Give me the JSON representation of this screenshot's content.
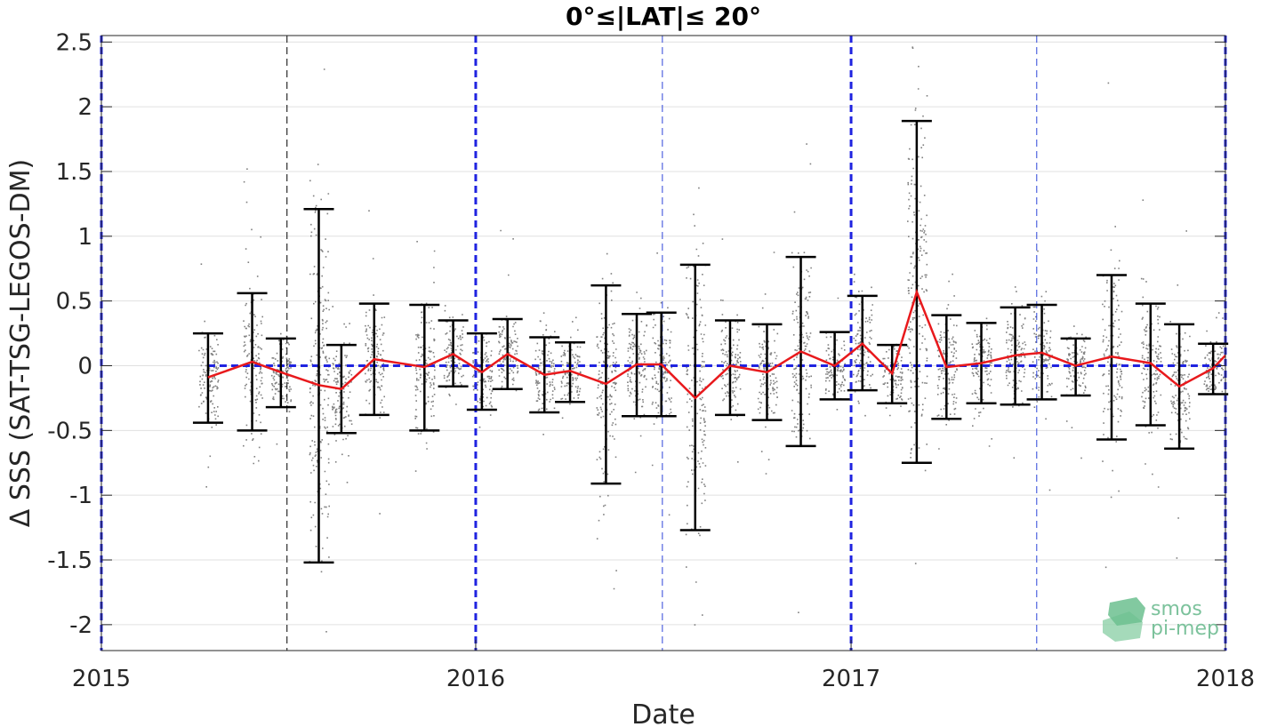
{
  "chart_data": {
    "type": "line",
    "title": "0°≤|LAT|≤ 20°",
    "xlabel": "Date",
    "ylabel": "Δ SSS (SAT-TSG-LEGOS-DM)",
    "xlim": [
      "2015-01-01",
      "2018-01-01"
    ],
    "ylim": [
      -2.2,
      2.55
    ],
    "x_ticks": [
      "2015",
      "2016",
      "2017",
      "2018"
    ],
    "y_ticks": [
      2.5,
      2,
      1.5,
      1,
      0.5,
      0,
      -0.5,
      -1,
      -1.5,
      -2
    ],
    "y_tick_labels": [
      "2.5",
      "2",
      "1.5",
      "1",
      "0.5",
      "0",
      "-0.5",
      "-1",
      "-1.5",
      "-2"
    ],
    "grid": true,
    "series": [
      {
        "x": [
          "2015-04-15",
          "2015-05-28",
          "2015-06-25",
          "2015-08-01",
          "2015-08-23",
          "2015-09-24",
          "2015-11-12",
          "2015-12-10",
          "2016-01-07",
          "2016-02-01",
          "2016-03-08",
          "2016-04-02",
          "2016-05-07",
          "2016-06-06",
          "2016-06-30",
          "2016-08-02",
          "2016-09-05",
          "2016-10-11",
          "2016-11-13",
          "2016-12-16",
          "2017-01-12",
          "2017-02-10",
          "2017-03-06",
          "2017-04-04",
          "2017-05-08",
          "2017-06-10",
          "2017-07-06",
          "2017-08-08",
          "2017-09-12",
          "2017-10-20",
          "2017-11-17",
          "2017-12-20",
          "2018-01-01"
        ],
        "mean": [
          -0.09,
          0.03,
          -0.05,
          -0.15,
          -0.18,
          0.05,
          -0.01,
          0.09,
          -0.05,
          0.09,
          -0.07,
          -0.04,
          -0.14,
          0.01,
          0.01,
          -0.25,
          0.0,
          -0.05,
          0.11,
          0.0,
          0.17,
          -0.06,
          0.57,
          -0.01,
          0.02,
          0.08,
          0.1,
          0.0,
          0.07,
          0.02,
          -0.16,
          -0.02,
          0.08
        ],
        "upper": [
          0.25,
          0.56,
          0.21,
          1.21,
          0.16,
          0.48,
          0.47,
          0.35,
          0.25,
          0.36,
          0.22,
          0.18,
          0.62,
          0.4,
          0.41,
          0.78,
          0.35,
          0.32,
          0.84,
          0.26,
          0.54,
          0.16,
          1.89,
          0.39,
          0.33,
          0.45,
          0.47,
          0.21,
          0.7,
          0.48,
          0.32,
          0.17,
          null
        ],
        "lower": [
          -0.44,
          -0.5,
          -0.32,
          -1.52,
          -0.52,
          -0.38,
          -0.5,
          -0.16,
          -0.34,
          -0.18,
          -0.36,
          -0.28,
          -0.91,
          -0.39,
          -0.39,
          -1.27,
          -0.38,
          -0.42,
          -0.62,
          -0.26,
          -0.19,
          -0.29,
          -0.75,
          -0.41,
          -0.29,
          -0.3,
          -0.26,
          -0.23,
          -0.57,
          -0.46,
          -0.64,
          -0.22,
          null
        ]
      }
    ],
    "reference_line_y": 0,
    "colors": {
      "mean_line": "#e8191c",
      "error_bars": "#000000",
      "scatter": "#808080",
      "reference": "#1f23e0",
      "year_lines": "#1f23e0",
      "mid_year_lines": "#2d44d8",
      "grid": "#e0e0e0"
    },
    "logo_text": [
      "smos",
      "pi-mep"
    ]
  }
}
